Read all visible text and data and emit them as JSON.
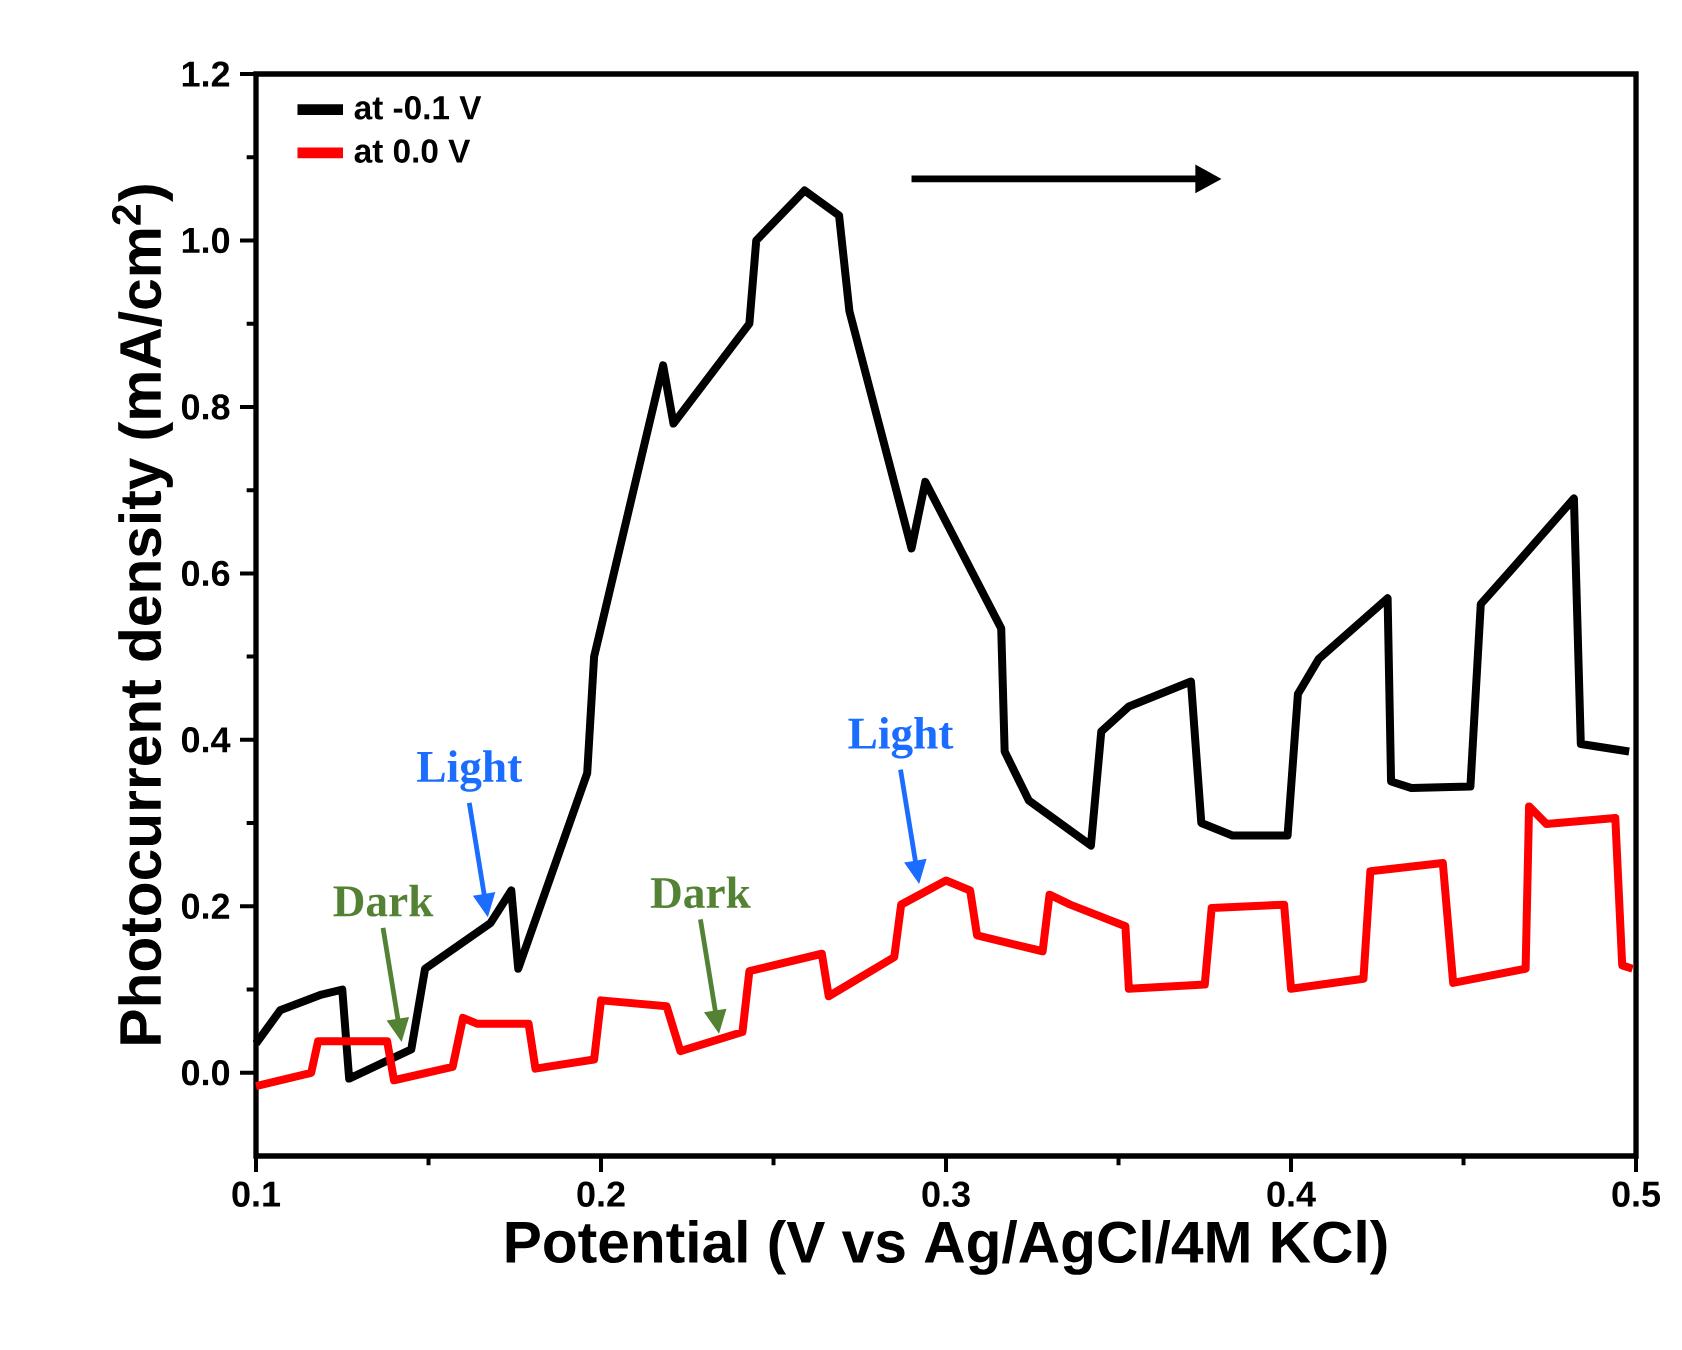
{
  "chart_data": {
    "type": "line",
    "xlabel": "Potential (V vs Ag/AgCl/4M KCl)",
    "ylabel": "Photocurrent density (mA/cm$^{2}$)",
    "xlim": [
      0.1,
      0.5
    ],
    "ylim": [
      -0.1,
      1.2
    ],
    "xticks": [
      0.1,
      0.2,
      0.3,
      0.4,
      0.5
    ],
    "yticks": [
      {
        "value": 0,
        "label": "0.0"
      },
      {
        "value": 0.2,
        "label": "0.2"
      },
      {
        "value": 0.4,
        "label": "0.4"
      },
      {
        "value": 0.6,
        "label": "0.6"
      },
      {
        "value": 0.8,
        "label": "0.8"
      },
      {
        "value": 1.0,
        "label": "1.0"
      },
      {
        "value": 1.2,
        "label": "1.2"
      }
    ],
    "legend": "top left",
    "grid": false,
    "marker": "none",
    "line_style": "solid",
    "series": [
      {
        "name": "at -0.1 V",
        "color": "#000000",
        "x": [
          0.1,
          0.107,
          0.119,
          0.125,
          0.127,
          0.145,
          0.149,
          0.168,
          0.174,
          0.176,
          0.196,
          0.198,
          0.218,
          0.221,
          0.232,
          0.243,
          0.245,
          0.259,
          0.269,
          0.272,
          0.29,
          0.294,
          0.316,
          0.317,
          0.324,
          0.342,
          0.345,
          0.353,
          0.371,
          0.374,
          0.383,
          0.399,
          0.402,
          0.408,
          0.428,
          0.429,
          0.435,
          0.452,
          0.455,
          0.464,
          0.482,
          0.484,
          0.498
        ],
        "values": [
          0.035,
          0.075,
          0.094,
          0.1,
          -0.007,
          0.028,
          0.125,
          0.18,
          0.219,
          0.125,
          0.36,
          0.5,
          0.85,
          0.78,
          0.84,
          0.9,
          1.0,
          1.06,
          1.03,
          0.915,
          0.63,
          0.71,
          0.534,
          0.386,
          0.327,
          0.273,
          0.41,
          0.44,
          0.47,
          0.3,
          0.285,
          0.285,
          0.455,
          0.497,
          0.57,
          0.35,
          0.342,
          0.344,
          0.563,
          0.605,
          0.69,
          0.395,
          0.386
        ]
      },
      {
        "name": "at 0.0 V",
        "color": "#ff0000",
        "x": [
          0.1,
          0.116,
          0.118,
          0.138,
          0.14,
          0.157,
          0.16,
          0.164,
          0.179,
          0.181,
          0.198,
          0.2,
          0.219,
          0.223,
          0.241,
          0.243,
          0.264,
          0.266,
          0.285,
          0.287,
          0.3,
          0.307,
          0.309,
          0.328,
          0.33,
          0.336,
          0.352,
          0.353,
          0.375,
          0.377,
          0.398,
          0.4,
          0.421,
          0.423,
          0.444,
          0.447,
          0.468,
          0.469,
          0.474,
          0.494,
          0.496,
          0.499
        ],
        "values": [
          -0.016,
          0.0,
          0.038,
          0.038,
          -0.009,
          0.007,
          0.066,
          0.059,
          0.059,
          0.005,
          0.016,
          0.087,
          0.08,
          0.026,
          0.049,
          0.122,
          0.143,
          0.092,
          0.139,
          0.202,
          0.231,
          0.219,
          0.165,
          0.146,
          0.214,
          0.202,
          0.176,
          0.101,
          0.106,
          0.198,
          0.202,
          0.101,
          0.113,
          0.242,
          0.252,
          0.108,
          0.125,
          0.32,
          0.299,
          0.306,
          0.129,
          0.125
        ]
      }
    ],
    "annotations": [
      {
        "text": "Dark",
        "x": 0.143,
        "y": 0.03
      },
      {
        "text": "Light",
        "x": 0.168,
        "y": 0.18
      },
      {
        "text": "Dark",
        "x": 0.235,
        "y": 0.04
      },
      {
        "text": "Light",
        "x": 0.293,
        "y": 0.22
      }
    ]
  }
}
